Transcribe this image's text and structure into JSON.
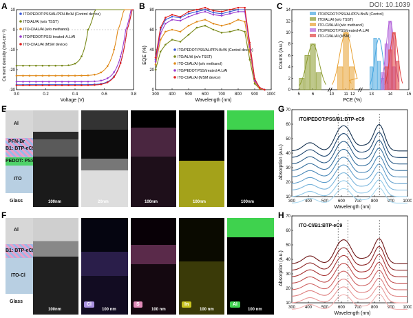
{
  "doi": "DOI: 10.1039",
  "panels": {
    "A": {
      "label": "A",
      "xlabel": "Voltage (V)",
      "ylabel": "Current density (mA cm⁻²)",
      "legend": [
        "ITO/PEDOT:PSS/AL/PFN-Br/Al (Control device)",
        "ITO/AL/Al (w/o TSST)",
        "ITO-Cl/AL/Al (w/o methanol)",
        "ITO/PEDOT:PSS/ treated-A.L/Al",
        "ITO-Cl/AL/Al (MSM device)"
      ]
    },
    "B": {
      "label": "B",
      "xlabel": "Wavelength (nm)",
      "ylabel": "EQE (%)",
      "legend": [
        "ITO/PEDOT:PSS/AL/PFN-Br/Al (Control device)",
        "ITO/AL/Al (w/o TSST)",
        "ITO-Cl/AL/Al (w/o methanol)",
        "ITO/PEDOT:PSS/treated-A.L/Al",
        "ITO-Cl/AL/Al (MSM device)"
      ]
    },
    "C": {
      "label": "C",
      "xlabel": "PCE (%)",
      "ylabel": "Counts (a.u.)",
      "legend": [
        "ITO/PEDOT:PSS/AL/PFN-Br/Al (Control)",
        "ITO/AL/Al (w/o TSST)",
        "ITO-Cl/AL/Al (w/o methanol)",
        "ITO/PEDOT:PSS/treated-A.L/Al",
        "ITO-Cl/AL/Al (MSM)"
      ]
    },
    "E": {
      "label": "E",
      "layers": [
        "Al",
        "PFN-Br",
        "B1: BTP-eC9",
        "PEDOT: PSS",
        "ITO",
        "Glass"
      ],
      "scales": [
        "100nm",
        "20nm",
        "100nm",
        "100nm",
        "100nm"
      ]
    },
    "F": {
      "label": "F",
      "layers": [
        "Al",
        "B1: BTP-eC9",
        "ITO-Cl",
        "Glass"
      ],
      "scales": [
        "100nm",
        "100 nm",
        "100 nm",
        "100 nm",
        "100 nm"
      ],
      "elements": [
        "Cl",
        "S",
        "In",
        "Al"
      ]
    },
    "G": {
      "label": "G",
      "title": "ITO/PEDOT:PSS/B1:BTP-eC9",
      "xlabel": "Wavelength (nm)",
      "ylabel": "Absorption (a.u.)"
    },
    "H": {
      "label": "H",
      "title": "ITO-Cl/B1:BTP-eC9",
      "xlabel": "Wavelength (nm)",
      "ylabel": "Absorption (a.u.)"
    }
  },
  "chart_data": [
    {
      "type": "line",
      "panel": "A",
      "xlabel": "Voltage (V)",
      "ylabel": "Current density (mA cm⁻²)",
      "xlim": [
        0.0,
        0.9
      ],
      "ylim": [
        -30,
        10
      ],
      "xticks": [
        "0.0",
        "0.2",
        "0.4",
        "0.6",
        "0.8"
      ],
      "yticks": [
        "-30",
        "-20",
        "-10",
        "0",
        "10"
      ],
      "series": [
        {
          "name": "ITO/PEDOT:PSS/AL/PFN-Br/Al (Control device)",
          "color": "#3b5bd9",
          "jsc": -27.5,
          "voc": 0.85,
          "ff": 0.78
        },
        {
          "name": "ITO/AL/Al (w/o TSST)",
          "color": "#7a8a1c",
          "jsc": -18.0,
          "voc": 0.55,
          "ff": 0.55
        },
        {
          "name": "ITO-Cl/AL/Al (w/o methanol)",
          "color": "#e08a1a",
          "jsc": -23.0,
          "voc": 0.78,
          "ff": 0.62
        },
        {
          "name": "ITO/PEDOT:PSS/ treated-A.L/Al",
          "color": "#9b3bd0",
          "jsc": -26.0,
          "voc": 0.84,
          "ff": 0.74
        },
        {
          "name": "ITO-Cl/AL/Al (MSM device)",
          "color": "#e02020",
          "jsc": -27.8,
          "voc": 0.85,
          "ff": 0.79
        }
      ]
    },
    {
      "type": "line",
      "panel": "B",
      "xlabel": "Wavelength (nm)",
      "ylabel": "EQE (%)",
      "xlim": [
        300,
        1000
      ],
      "ylim": [
        0,
        80
      ],
      "xticks": [
        "300",
        "400",
        "500",
        "600",
        "700",
        "800",
        "900",
        "1000"
      ],
      "yticks": [
        "0",
        "20",
        "40",
        "60",
        "80"
      ],
      "x": [
        300,
        330,
        360,
        400,
        450,
        500,
        550,
        600,
        650,
        700,
        750,
        800,
        840,
        870,
        900,
        930,
        960
      ],
      "series": [
        {
          "name": "ITO/PEDOT:PSS/AL/PFN-Br/Al (Control device)",
          "color": "#3b5bd9",
          "values": [
            30,
            60,
            70,
            73,
            72,
            76,
            78,
            80,
            77,
            76,
            78,
            80,
            80,
            45,
            10,
            2,
            0
          ]
        },
        {
          "name": "ITO/AL/Al (w/o TSST)",
          "color": "#7a8a1c",
          "values": [
            20,
            38,
            45,
            50,
            48,
            55,
            62,
            64,
            60,
            57,
            58,
            60,
            58,
            30,
            6,
            1,
            0
          ]
        },
        {
          "name": "ITO-Cl/AL/Al (w/o methanol)",
          "color": "#e08a1a",
          "values": [
            25,
            50,
            58,
            60,
            58,
            64,
            68,
            70,
            66,
            64,
            66,
            70,
            68,
            38,
            8,
            1,
            0
          ]
        },
        {
          "name": "ITO/PEDOT:PSS/treated-A.L/Al",
          "color": "#9b3bd0",
          "values": [
            28,
            56,
            66,
            70,
            69,
            73,
            76,
            78,
            75,
            74,
            76,
            78,
            78,
            43,
            9,
            2,
            0
          ]
        },
        {
          "name": "ITO-Cl/AL/Al (MSM device)",
          "color": "#e02020",
          "values": [
            32,
            62,
            72,
            75,
            73,
            78,
            80,
            82,
            79,
            78,
            80,
            82,
            82,
            47,
            11,
            2,
            0
          ]
        }
      ]
    },
    {
      "type": "bar",
      "panel": "C",
      "xlabel": "PCE (%)",
      "ylabel": "Counts (a.u.)",
      "xticks": [
        "5",
        "6",
        "10",
        "11",
        "12",
        "13",
        "14",
        "15"
      ],
      "yticks": [
        "0",
        "2",
        "4",
        "6",
        "8",
        "10",
        "12",
        "14"
      ],
      "ylim": [
        0,
        14
      ],
      "series": [
        {
          "name": "ITO/PEDOT:PSS/AL/PFN-Br/Al (Control)",
          "color": "#4aa8e0",
          "bins": [
            13.0,
            13.2,
            13.4,
            13.6
          ],
          "values": [
            4,
            9,
            5,
            2
          ]
        },
        {
          "name": "ITO/AL/Al (w/o TSST)",
          "color": "#8a9a2c",
          "bins": [
            5.2,
            5.6,
            6.0,
            6.4
          ],
          "values": [
            2,
            6,
            8,
            3
          ]
        },
        {
          "name": "ITO-Cl/AL/Al (w/o methanol)",
          "color": "#e8a030",
          "bins": [
            10.6,
            11.0,
            11.4
          ],
          "values": [
            4,
            10,
            4
          ]
        },
        {
          "name": "ITO/PEDOT:PSS/treated-A.L/Al",
          "color": "#b060d8",
          "bins": [
            13.6,
            13.8,
            14.0,
            14.2
          ],
          "values": [
            3,
            8,
            12,
            4
          ]
        },
        {
          "name": "ITO-Cl/AL/Al (MSM)",
          "color": "#e04040",
          "bins": [
            13.8,
            14.0,
            14.2,
            14.4
          ],
          "values": [
            4,
            7,
            10,
            5
          ]
        }
      ]
    },
    {
      "type": "line",
      "panel": "G",
      "xlabel": "Wavelength (nm)",
      "ylabel": "Absorption (a.u.)",
      "xlim": [
        300,
        1000
      ],
      "ylim": [
        10,
        70
      ],
      "xticks": [
        "300",
        "400",
        "500",
        "600",
        "700",
        "800",
        "900",
        "1000"
      ],
      "yticks": [
        "10",
        "20",
        "30",
        "40",
        "50",
        "60",
        "70"
      ],
      "markers": [
        580,
        640,
        830
      ],
      "offsets": [
        0,
        4,
        8,
        12,
        16,
        20,
        24,
        28,
        32
      ],
      "colors": [
        "#a8d8f0",
        "#90c8e8",
        "#78b4dc",
        "#5f9ecc",
        "#4a88b8",
        "#3872a0",
        "#2a5c88",
        "#1e4670",
        "#13304f"
      ]
    },
    {
      "type": "line",
      "panel": "H",
      "xlabel": "Wavelength (nm)",
      "ylabel": "Absorption (a.u.)",
      "xlim": [
        300,
        1000
      ],
      "ylim": [
        10,
        70
      ],
      "xticks": [
        "300",
        "400",
        "500",
        "600",
        "700",
        "800",
        "900",
        "1000"
      ],
      "yticks": [
        "10",
        "20",
        "30",
        "40",
        "50",
        "60",
        "70"
      ],
      "markers": [
        580,
        640,
        830
      ],
      "offsets": [
        0,
        4,
        8,
        12,
        16,
        20,
        24,
        28
      ],
      "colors": [
        "#f0b0b0",
        "#e89898",
        "#de7f7f",
        "#d06666",
        "#c04c4c",
        "#a83636",
        "#8c2424",
        "#6e1616"
      ]
    }
  ]
}
